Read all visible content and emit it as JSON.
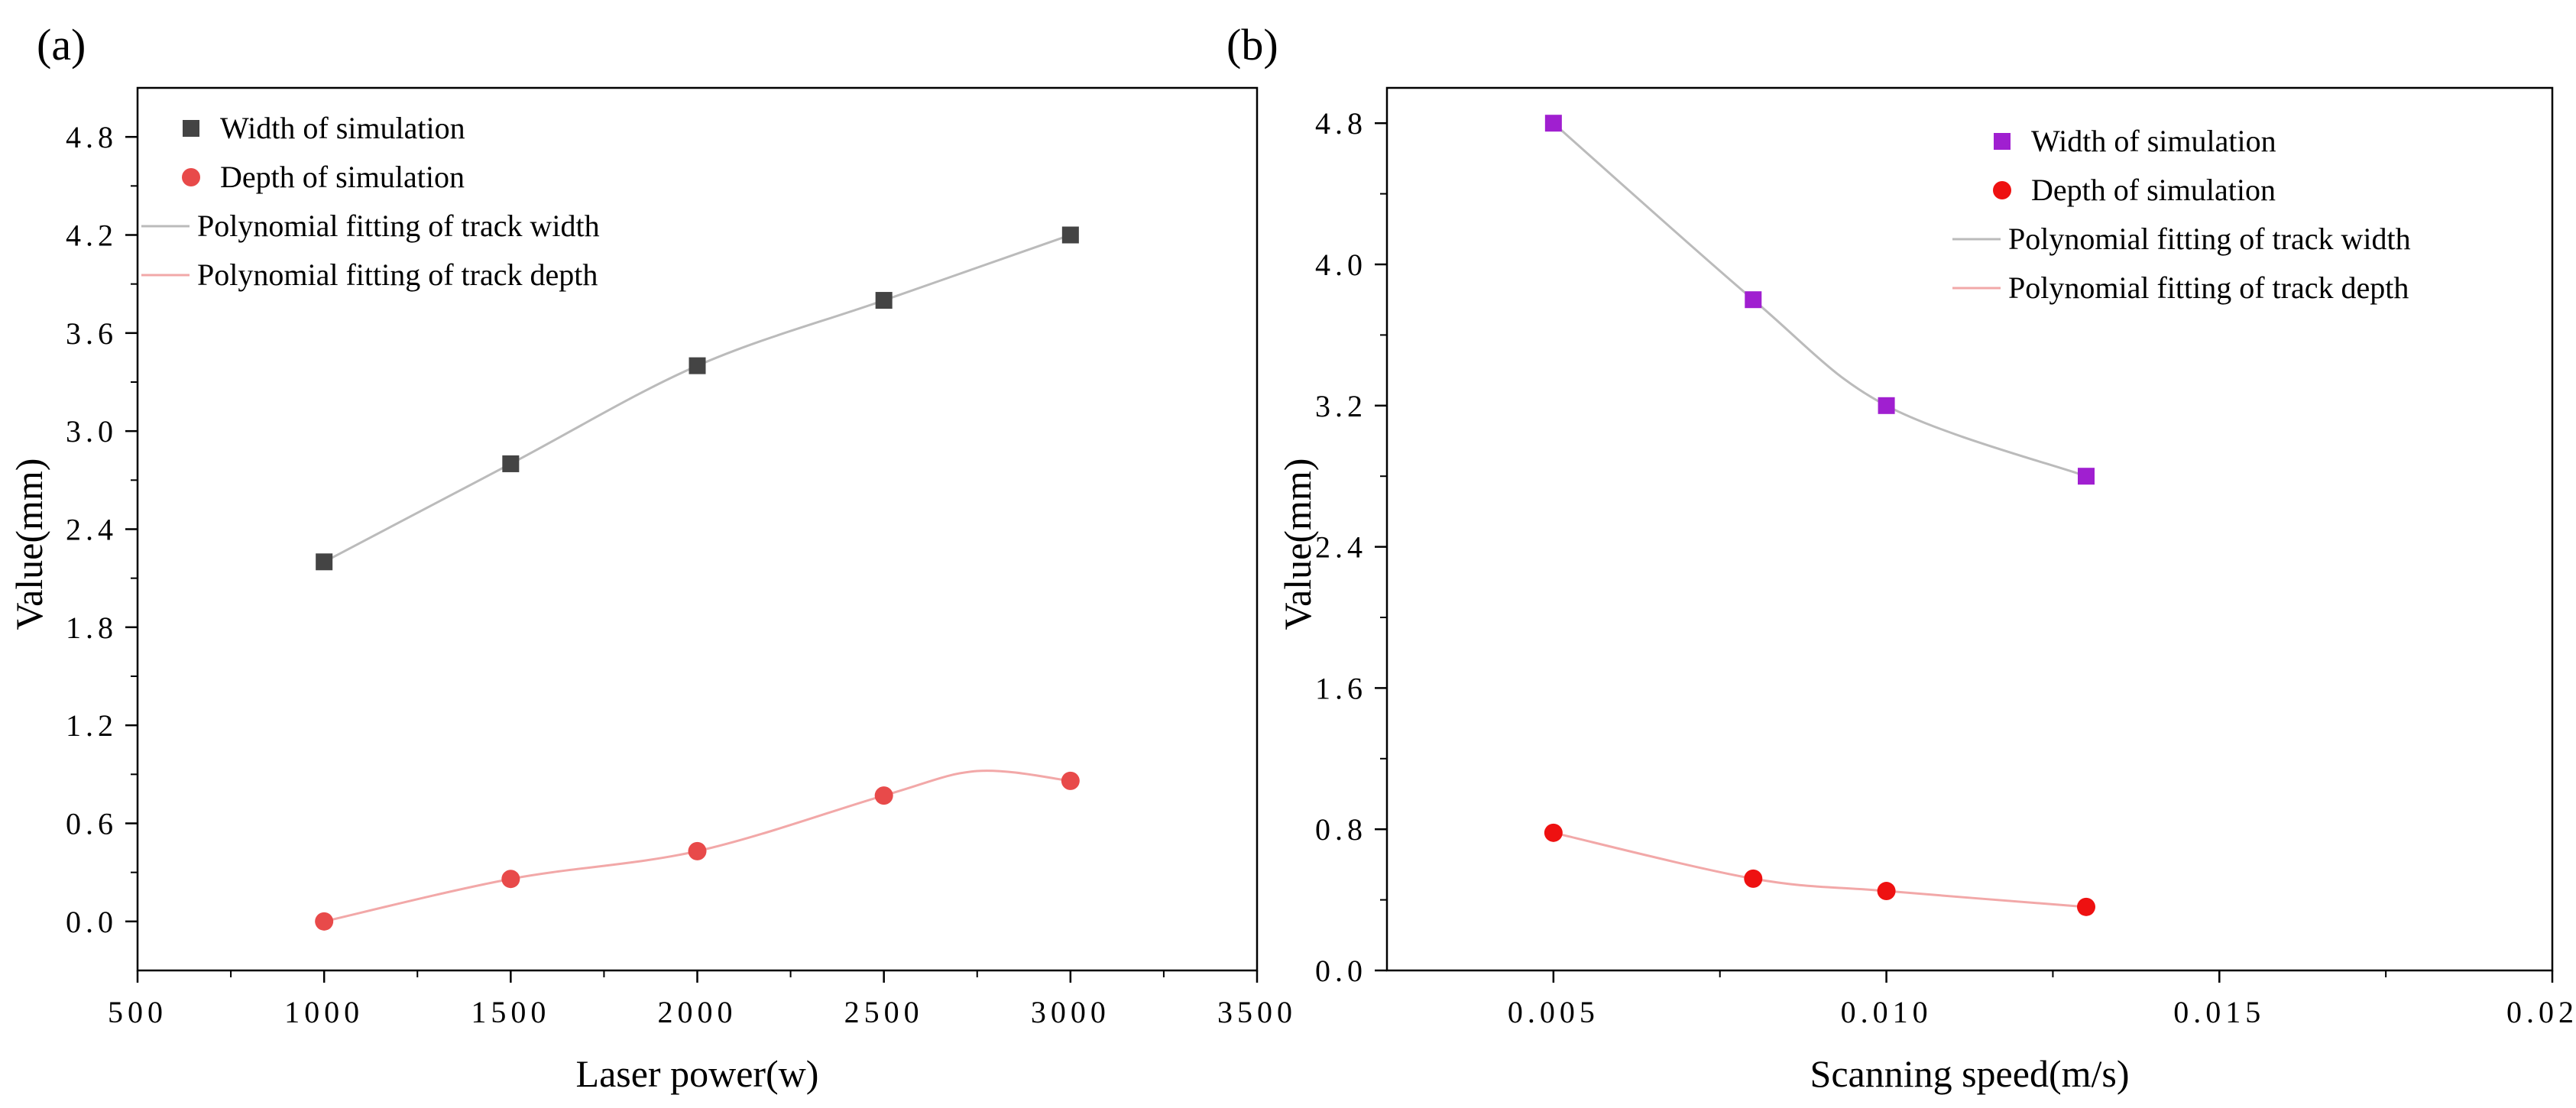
{
  "chart_data": [
    {
      "type": "scatter",
      "panel_label": "(a)",
      "xlabel": "Laser power(w)",
      "ylabel": "Value(mm)",
      "xlim": [
        500,
        3500
      ],
      "ylim": [
        -0.3,
        5.1
      ],
      "xticks": [
        500,
        1000,
        1500,
        2000,
        2500,
        3000,
        3500
      ],
      "yticks": [
        0.0,
        0.6,
        1.2,
        1.8,
        2.4,
        3.0,
        3.6,
        4.2,
        4.8
      ],
      "xtick_labels": [
        "500",
        "1000",
        "1500",
        "2000",
        "2500",
        "3000",
        "3500"
      ],
      "ytick_labels": [
        "0.0",
        "0.6",
        "1.2",
        "1.8",
        "2.4",
        "3.0",
        "3.6",
        "4.2",
        "4.8"
      ],
      "legend_position": "top-left",
      "series": [
        {
          "name": "Width of simulation",
          "kind": "markers",
          "marker": "square",
          "color": "#444444",
          "x": [
            1000,
            1500,
            2000,
            2500,
            3000
          ],
          "y": [
            2.2,
            2.8,
            3.4,
            3.8,
            4.2
          ]
        },
        {
          "name": "Depth of simulation",
          "kind": "markers",
          "marker": "circle",
          "color": "#e84a4a",
          "x": [
            1000,
            1500,
            2000,
            2500,
            3000
          ],
          "y": [
            0.0,
            0.26,
            0.43,
            0.77,
            0.86
          ]
        },
        {
          "name": "Polynomial fitting of track width",
          "kind": "curve",
          "color": "#bbbbbb",
          "x": [
            1000,
            1500,
            2000,
            2500,
            3000
          ],
          "y": [
            2.2,
            2.8,
            3.4,
            3.8,
            4.2
          ]
        },
        {
          "name": "Polynomial fitting of track depth",
          "kind": "curve",
          "color": "#f2a8a8",
          "x": [
            1000,
            1500,
            2000,
            2500,
            2750,
            3000
          ],
          "y": [
            0.0,
            0.26,
            0.43,
            0.77,
            0.92,
            0.86
          ]
        }
      ]
    },
    {
      "type": "scatter",
      "panel_label": "(b)",
      "xlabel": "Scanning speed(m/s)",
      "ylabel": "Value(mm)",
      "xlim": [
        0.0025,
        0.02
      ],
      "ylim": [
        0.0,
        5.0
      ],
      "xticks": [
        0.005,
        0.01,
        0.015,
        0.02
      ],
      "yticks": [
        0.0,
        0.8,
        1.6,
        2.4,
        3.2,
        4.0,
        4.8
      ],
      "xtick_labels": [
        "0.005",
        "0.010",
        "0.015",
        "0.020"
      ],
      "ytick_labels": [
        "0.0",
        "0.8",
        "1.6",
        "2.4",
        "3.2",
        "4.0",
        "4.8"
      ],
      "legend_position": "top-right",
      "series": [
        {
          "name": "Width of simulation",
          "kind": "markers",
          "marker": "square",
          "color": "#a01fd0",
          "x": [
            0.005,
            0.008,
            0.01,
            0.013
          ],
          "y": [
            4.8,
            3.8,
            3.2,
            2.8
          ]
        },
        {
          "name": "Depth of simulation",
          "kind": "markers",
          "marker": "circle",
          "color": "#ee1111",
          "x": [
            0.005,
            0.008,
            0.01,
            0.013
          ],
          "y": [
            0.78,
            0.52,
            0.45,
            0.36
          ]
        },
        {
          "name": "Polynomial fitting of track width",
          "kind": "curve",
          "color": "#bbbbbb",
          "x": [
            0.005,
            0.008,
            0.01,
            0.013
          ],
          "y": [
            4.8,
            3.8,
            3.2,
            2.8
          ]
        },
        {
          "name": "Polynomial fitting of track depth",
          "kind": "curve",
          "color": "#f2a8a8",
          "x": [
            0.005,
            0.008,
            0.01,
            0.013
          ],
          "y": [
            0.78,
            0.52,
            0.45,
            0.36
          ]
        }
      ]
    }
  ]
}
